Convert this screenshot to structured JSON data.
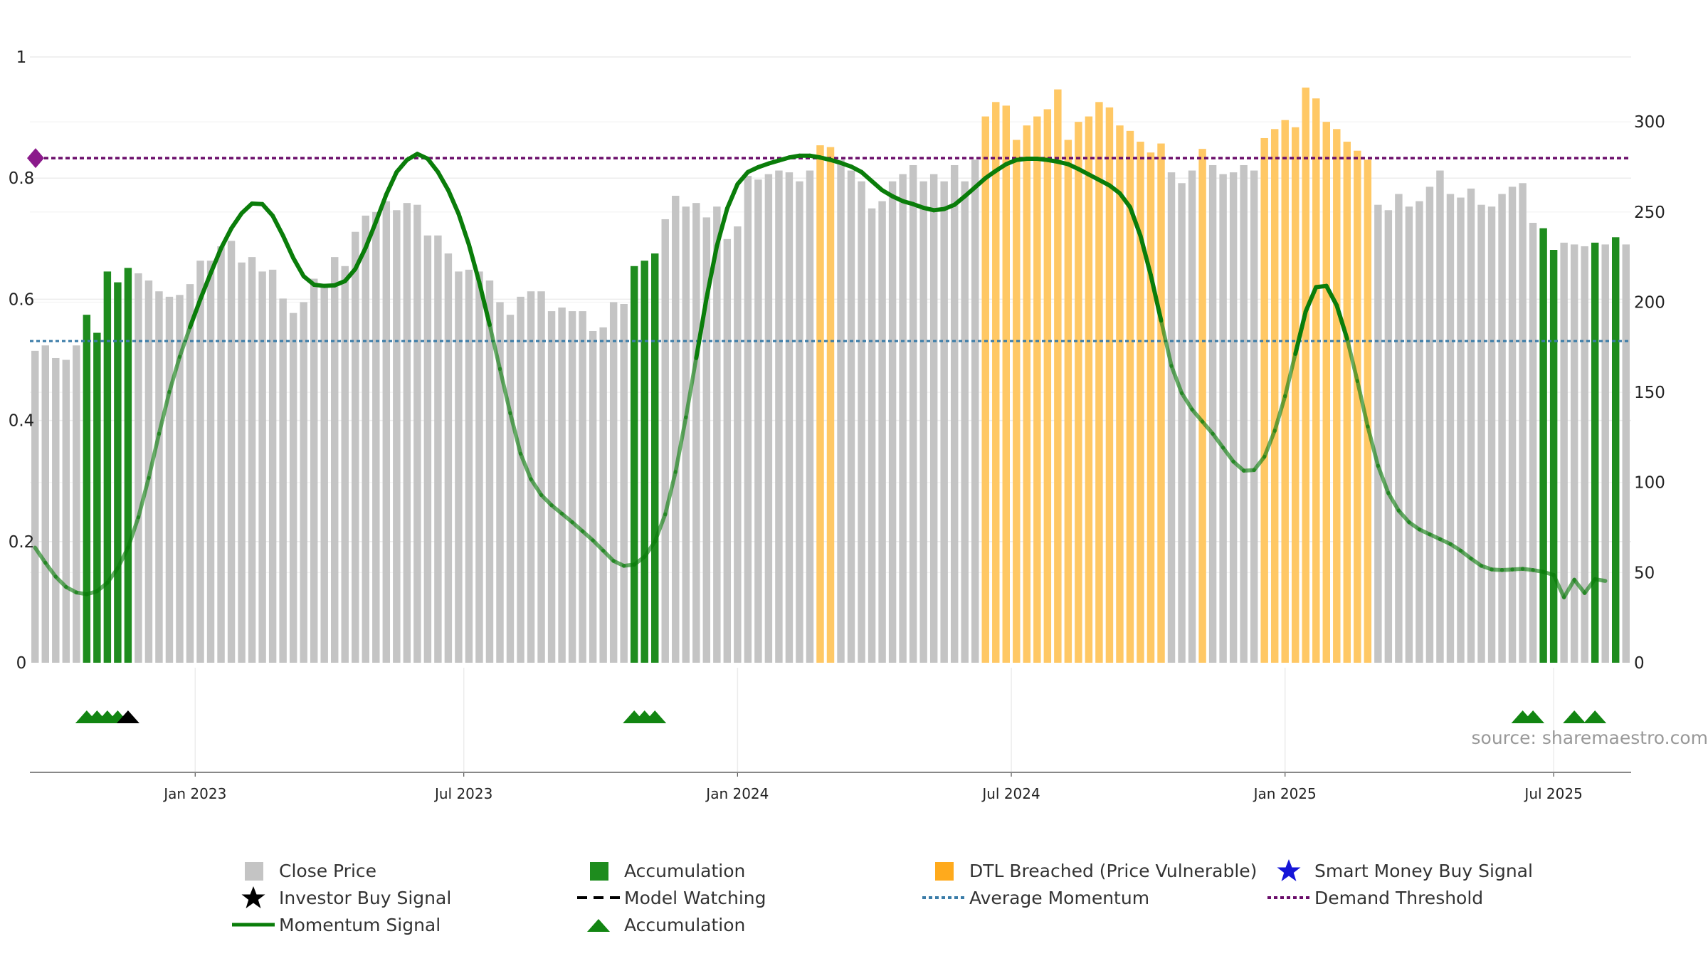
{
  "chart_data": {
    "type": "bar",
    "title": "",
    "source_note": "source: sharemaestro.com",
    "x_ticks": [
      "Jan 2023",
      "Jul 2023",
      "Jan 2024",
      "Jul 2024",
      "Jan 2025",
      "Jul 2025"
    ],
    "left_axis": {
      "ticks": [
        "0",
        "0.2",
        "0.4",
        "0.6",
        "0.8",
        "1"
      ],
      "range": [
        0,
        1
      ]
    },
    "right_axis": {
      "ticks": [
        "0",
        "50",
        "100",
        "150",
        "200",
        "250",
        "300"
      ],
      "range": [
        0,
        336
      ]
    },
    "average_momentum": 0.531,
    "demand_threshold": 0.833,
    "close_price": [
      {
        "v": 173,
        "s": "g"
      },
      {
        "v": 176,
        "s": "g"
      },
      {
        "v": 169,
        "s": "g"
      },
      {
        "v": 168,
        "s": "g"
      },
      {
        "v": 176,
        "s": "g"
      },
      {
        "v": 193,
        "s": "a"
      },
      {
        "v": 183,
        "s": "a"
      },
      {
        "v": 217,
        "s": "a"
      },
      {
        "v": 211,
        "s": "a"
      },
      {
        "v": 219,
        "s": "a"
      },
      {
        "v": 216,
        "s": "g"
      },
      {
        "v": 212,
        "s": "g"
      },
      {
        "v": 206,
        "s": "g"
      },
      {
        "v": 203,
        "s": "g"
      },
      {
        "v": 204,
        "s": "g"
      },
      {
        "v": 210,
        "s": "g"
      },
      {
        "v": 223,
        "s": "g"
      },
      {
        "v": 223,
        "s": "g"
      },
      {
        "v": 231,
        "s": "g"
      },
      {
        "v": 234,
        "s": "g"
      },
      {
        "v": 222,
        "s": "g"
      },
      {
        "v": 225,
        "s": "g"
      },
      {
        "v": 217,
        "s": "g"
      },
      {
        "v": 218,
        "s": "g"
      },
      {
        "v": 202,
        "s": "g"
      },
      {
        "v": 194,
        "s": "g"
      },
      {
        "v": 200,
        "s": "g"
      },
      {
        "v": 213,
        "s": "g"
      },
      {
        "v": 209,
        "s": "g"
      },
      {
        "v": 225,
        "s": "g"
      },
      {
        "v": 220,
        "s": "g"
      },
      {
        "v": 239,
        "s": "g"
      },
      {
        "v": 248,
        "s": "g"
      },
      {
        "v": 250,
        "s": "g"
      },
      {
        "v": 256,
        "s": "g"
      },
      {
        "v": 251,
        "s": "g"
      },
      {
        "v": 255,
        "s": "g"
      },
      {
        "v": 254,
        "s": "g"
      },
      {
        "v": 237,
        "s": "g"
      },
      {
        "v": 237,
        "s": "g"
      },
      {
        "v": 227,
        "s": "g"
      },
      {
        "v": 217,
        "s": "g"
      },
      {
        "v": 218,
        "s": "g"
      },
      {
        "v": 217,
        "s": "g"
      },
      {
        "v": 212,
        "s": "g"
      },
      {
        "v": 200,
        "s": "g"
      },
      {
        "v": 193,
        "s": "g"
      },
      {
        "v": 203,
        "s": "g"
      },
      {
        "v": 206,
        "s": "g"
      },
      {
        "v": 206,
        "s": "g"
      },
      {
        "v": 195,
        "s": "g"
      },
      {
        "v": 197,
        "s": "g"
      },
      {
        "v": 195,
        "s": "g"
      },
      {
        "v": 195,
        "s": "g"
      },
      {
        "v": 184,
        "s": "g"
      },
      {
        "v": 186,
        "s": "g"
      },
      {
        "v": 200,
        "s": "g"
      },
      {
        "v": 199,
        "s": "g"
      },
      {
        "v": 220,
        "s": "a"
      },
      {
        "v": 223,
        "s": "a"
      },
      {
        "v": 227,
        "s": "a"
      },
      {
        "v": 246,
        "s": "g"
      },
      {
        "v": 259,
        "s": "g"
      },
      {
        "v": 253,
        "s": "g"
      },
      {
        "v": 255,
        "s": "g"
      },
      {
        "v": 247,
        "s": "g"
      },
      {
        "v": 253,
        "s": "g"
      },
      {
        "v": 235,
        "s": "g"
      },
      {
        "v": 242,
        "s": "g"
      },
      {
        "v": 270,
        "s": "g"
      },
      {
        "v": 268,
        "s": "g"
      },
      {
        "v": 271,
        "s": "g"
      },
      {
        "v": 273,
        "s": "g"
      },
      {
        "v": 272,
        "s": "g"
      },
      {
        "v": 267,
        "s": "g"
      },
      {
        "v": 273,
        "s": "g"
      },
      {
        "v": 287,
        "s": "o"
      },
      {
        "v": 286,
        "s": "o"
      },
      {
        "v": 279,
        "s": "g"
      },
      {
        "v": 273,
        "s": "g"
      },
      {
        "v": 267,
        "s": "g"
      },
      {
        "v": 252,
        "s": "g"
      },
      {
        "v": 256,
        "s": "g"
      },
      {
        "v": 267,
        "s": "g"
      },
      {
        "v": 271,
        "s": "g"
      },
      {
        "v": 276,
        "s": "g"
      },
      {
        "v": 267,
        "s": "g"
      },
      {
        "v": 271,
        "s": "g"
      },
      {
        "v": 267,
        "s": "g"
      },
      {
        "v": 276,
        "s": "g"
      },
      {
        "v": 267,
        "s": "g"
      },
      {
        "v": 279,
        "s": "g"
      },
      {
        "v": 303,
        "s": "o"
      },
      {
        "v": 311,
        "s": "o"
      },
      {
        "v": 309,
        "s": "o"
      },
      {
        "v": 290,
        "s": "o"
      },
      {
        "v": 298,
        "s": "o"
      },
      {
        "v": 303,
        "s": "o"
      },
      {
        "v": 307,
        "s": "o"
      },
      {
        "v": 318,
        "s": "o"
      },
      {
        "v": 290,
        "s": "o"
      },
      {
        "v": 300,
        "s": "o"
      },
      {
        "v": 303,
        "s": "o"
      },
      {
        "v": 311,
        "s": "o"
      },
      {
        "v": 308,
        "s": "o"
      },
      {
        "v": 298,
        "s": "o"
      },
      {
        "v": 295,
        "s": "o"
      },
      {
        "v": 289,
        "s": "o"
      },
      {
        "v": 283,
        "s": "o"
      },
      {
        "v": 288,
        "s": "o"
      },
      {
        "v": 272,
        "s": "g"
      },
      {
        "v": 266,
        "s": "g"
      },
      {
        "v": 273,
        "s": "g"
      },
      {
        "v": 285,
        "s": "o"
      },
      {
        "v": 276,
        "s": "g"
      },
      {
        "v": 271,
        "s": "g"
      },
      {
        "v": 272,
        "s": "g"
      },
      {
        "v": 276,
        "s": "g"
      },
      {
        "v": 273,
        "s": "g"
      },
      {
        "v": 291,
        "s": "o"
      },
      {
        "v": 296,
        "s": "o"
      },
      {
        "v": 301,
        "s": "o"
      },
      {
        "v": 297,
        "s": "o"
      },
      {
        "v": 319,
        "s": "o"
      },
      {
        "v": 313,
        "s": "o"
      },
      {
        "v": 300,
        "s": "o"
      },
      {
        "v": 296,
        "s": "o"
      },
      {
        "v": 289,
        "s": "o"
      },
      {
        "v": 284,
        "s": "o"
      },
      {
        "v": 279,
        "s": "o"
      },
      {
        "v": 254,
        "s": "g"
      },
      {
        "v": 251,
        "s": "g"
      },
      {
        "v": 260,
        "s": "g"
      },
      {
        "v": 253,
        "s": "g"
      },
      {
        "v": 256,
        "s": "g"
      },
      {
        "v": 264,
        "s": "g"
      },
      {
        "v": 273,
        "s": "g"
      },
      {
        "v": 260,
        "s": "g"
      },
      {
        "v": 258,
        "s": "g"
      },
      {
        "v": 263,
        "s": "g"
      },
      {
        "v": 254,
        "s": "g"
      },
      {
        "v": 253,
        "s": "g"
      },
      {
        "v": 260,
        "s": "g"
      },
      {
        "v": 264,
        "s": "g"
      },
      {
        "v": 266,
        "s": "g"
      },
      {
        "v": 244,
        "s": "g"
      },
      {
        "v": 241,
        "s": "a"
      },
      {
        "v": 229,
        "s": "a"
      },
      {
        "v": 233,
        "s": "g"
      },
      {
        "v": 232,
        "s": "g"
      },
      {
        "v": 231,
        "s": "g"
      },
      {
        "v": 233,
        "s": "a"
      },
      {
        "v": 232,
        "s": "g"
      },
      {
        "v": 236,
        "s": "a"
      },
      {
        "v": 232,
        "s": "g"
      }
    ],
    "momentum_signal": [
      [
        0,
        0.19
      ],
      [
        1,
        0.165
      ],
      [
        2,
        0.142
      ],
      [
        3,
        0.125
      ],
      [
        4,
        0.116
      ],
      [
        5,
        0.113
      ],
      [
        6,
        0.118
      ],
      [
        7,
        0.132
      ],
      [
        8,
        0.156
      ],
      [
        9,
        0.19
      ],
      [
        10,
        0.24
      ],
      [
        11,
        0.305
      ],
      [
        12,
        0.378
      ],
      [
        13,
        0.447
      ],
      [
        14,
        0.505
      ],
      [
        15,
        0.554
      ],
      [
        16,
        0.6
      ],
      [
        17,
        0.643
      ],
      [
        18,
        0.684
      ],
      [
        19,
        0.717
      ],
      [
        20,
        0.742
      ],
      [
        21,
        0.758
      ],
      [
        22,
        0.757
      ],
      [
        23,
        0.738
      ],
      [
        24,
        0.705
      ],
      [
        25,
        0.668
      ],
      [
        26,
        0.638
      ],
      [
        27,
        0.624
      ],
      [
        28,
        0.622
      ],
      [
        29,
        0.623
      ],
      [
        30,
        0.63
      ],
      [
        31,
        0.65
      ],
      [
        32,
        0.685
      ],
      [
        33,
        0.728
      ],
      [
        34,
        0.773
      ],
      [
        35,
        0.81
      ],
      [
        36,
        0.83
      ],
      [
        37,
        0.84
      ],
      [
        38,
        0.832
      ],
      [
        39,
        0.81
      ],
      [
        40,
        0.78
      ],
      [
        41,
        0.741
      ],
      [
        42,
        0.69
      ],
      [
        43,
        0.628
      ],
      [
        44,
        0.558
      ],
      [
        45,
        0.485
      ],
      [
        46,
        0.412
      ],
      [
        47,
        0.345
      ],
      [
        48,
        0.303
      ],
      [
        49,
        0.277
      ],
      [
        50,
        0.26
      ],
      [
        51,
        0.246
      ],
      [
        52,
        0.232
      ],
      [
        53,
        0.217
      ],
      [
        54,
        0.202
      ],
      [
        55,
        0.185
      ],
      [
        56,
        0.168
      ],
      [
        57,
        0.16
      ],
      [
        58,
        0.162
      ],
      [
        59,
        0.175
      ],
      [
        60,
        0.2
      ],
      [
        61,
        0.245
      ],
      [
        62,
        0.315
      ],
      [
        63,
        0.405
      ],
      [
        64,
        0.503
      ],
      [
        65,
        0.602
      ],
      [
        66,
        0.688
      ],
      [
        67,
        0.75
      ],
      [
        68,
        0.79
      ],
      [
        69,
        0.81
      ],
      [
        70,
        0.818
      ],
      [
        71,
        0.824
      ],
      [
        72,
        0.829
      ],
      [
        73,
        0.834
      ],
      [
        74,
        0.837
      ],
      [
        75,
        0.837
      ],
      [
        76,
        0.834
      ],
      [
        77,
        0.83
      ],
      [
        78,
        0.825
      ],
      [
        79,
        0.819
      ],
      [
        80,
        0.81
      ],
      [
        81,
        0.795
      ],
      [
        82,
        0.78
      ],
      [
        83,
        0.77
      ],
      [
        84,
        0.762
      ],
      [
        85,
        0.757
      ],
      [
        86,
        0.751
      ],
      [
        87,
        0.747
      ],
      [
        88,
        0.749
      ],
      [
        89,
        0.756
      ],
      [
        90,
        0.77
      ],
      [
        91,
        0.785
      ],
      [
        92,
        0.8
      ],
      [
        93,
        0.812
      ],
      [
        94,
        0.823
      ],
      [
        95,
        0.83
      ],
      [
        96,
        0.832
      ],
      [
        97,
        0.832
      ],
      [
        98,
        0.83
      ],
      [
        99,
        0.827
      ],
      [
        100,
        0.823
      ],
      [
        101,
        0.815
      ],
      [
        102,
        0.806
      ],
      [
        103,
        0.797
      ],
      [
        104,
        0.788
      ],
      [
        105,
        0.775
      ],
      [
        106,
        0.752
      ],
      [
        107,
        0.705
      ],
      [
        108,
        0.64
      ],
      [
        109,
        0.565
      ],
      [
        110,
        0.49
      ],
      [
        111,
        0.445
      ],
      [
        112,
        0.418
      ],
      [
        113,
        0.398
      ],
      [
        114,
        0.378
      ],
      [
        115,
        0.355
      ],
      [
        116,
        0.332
      ],
      [
        117,
        0.317
      ],
      [
        118,
        0.318
      ],
      [
        119,
        0.34
      ],
      [
        120,
        0.383
      ],
      [
        121,
        0.44
      ],
      [
        122,
        0.51
      ],
      [
        123,
        0.58
      ],
      [
        124,
        0.62
      ],
      [
        125,
        0.622
      ],
      [
        126,
        0.59
      ],
      [
        127,
        0.535
      ],
      [
        128,
        0.465
      ],
      [
        129,
        0.39
      ],
      [
        130,
        0.325
      ],
      [
        131,
        0.28
      ],
      [
        132,
        0.251
      ],
      [
        133,
        0.232
      ],
      [
        134,
        0.22
      ],
      [
        135,
        0.212
      ],
      [
        136,
        0.204
      ],
      [
        137,
        0.196
      ],
      [
        138,
        0.185
      ],
      [
        139,
        0.172
      ],
      [
        140,
        0.16
      ],
      [
        141,
        0.154
      ],
      [
        142,
        0.153
      ],
      [
        143,
        0.154
      ],
      [
        144,
        0.155
      ],
      [
        145,
        0.153
      ],
      [
        146,
        0.15
      ],
      [
        147,
        0.145
      ],
      [
        148,
        0.108
      ],
      [
        149,
        0.137
      ],
      [
        150,
        0.115
      ],
      [
        151,
        0.138
      ],
      [
        152,
        0.135
      ]
    ],
    "accumulation_markers": [
      {
        "i": 5,
        "c": "green"
      },
      {
        "i": 6,
        "c": "green"
      },
      {
        "i": 7,
        "c": "green"
      },
      {
        "i": 8,
        "c": "green"
      },
      {
        "i": 9,
        "c": "black"
      },
      {
        "i": 58,
        "c": "green"
      },
      {
        "i": 59,
        "c": "green"
      },
      {
        "i": 60,
        "c": "green"
      },
      {
        "i": 144,
        "c": "green"
      },
      {
        "i": 145,
        "c": "green"
      },
      {
        "i": 149,
        "c": "green"
      },
      {
        "i": 151,
        "c": "green"
      }
    ],
    "colors": {
      "close": "#c4c4c4",
      "accumulation": "#1e8c1e",
      "dtl": "#ffc865",
      "momentum": "#0a7d0a",
      "avg_momentum": "#3a7ca8",
      "demand": "#6a0d6a",
      "marker_green": "#128512",
      "marker_black": "#000000",
      "smart_money": "#1515d8"
    }
  },
  "legend": [
    {
      "label": "Close Price",
      "symbol": "square-grey"
    },
    {
      "label": "Accumulation",
      "symbol": "square-green"
    },
    {
      "label": "DTL Breached (Price Vulnerable)",
      "symbol": "square-orange"
    },
    {
      "label": "Smart Money Buy Signal",
      "symbol": "star-blue"
    },
    {
      "label": "Investor Buy Signal",
      "symbol": "star-black"
    },
    {
      "label": "Model Watching",
      "symbol": "dash-black"
    },
    {
      "label": "Average Momentum",
      "symbol": "dot-blue"
    },
    {
      "label": "Demand Threshold",
      "symbol": "dot-purple"
    },
    {
      "label": "Momentum Signal",
      "symbol": "line-green"
    },
    {
      "label": "Accumulation",
      "symbol": "triangle-green"
    }
  ]
}
